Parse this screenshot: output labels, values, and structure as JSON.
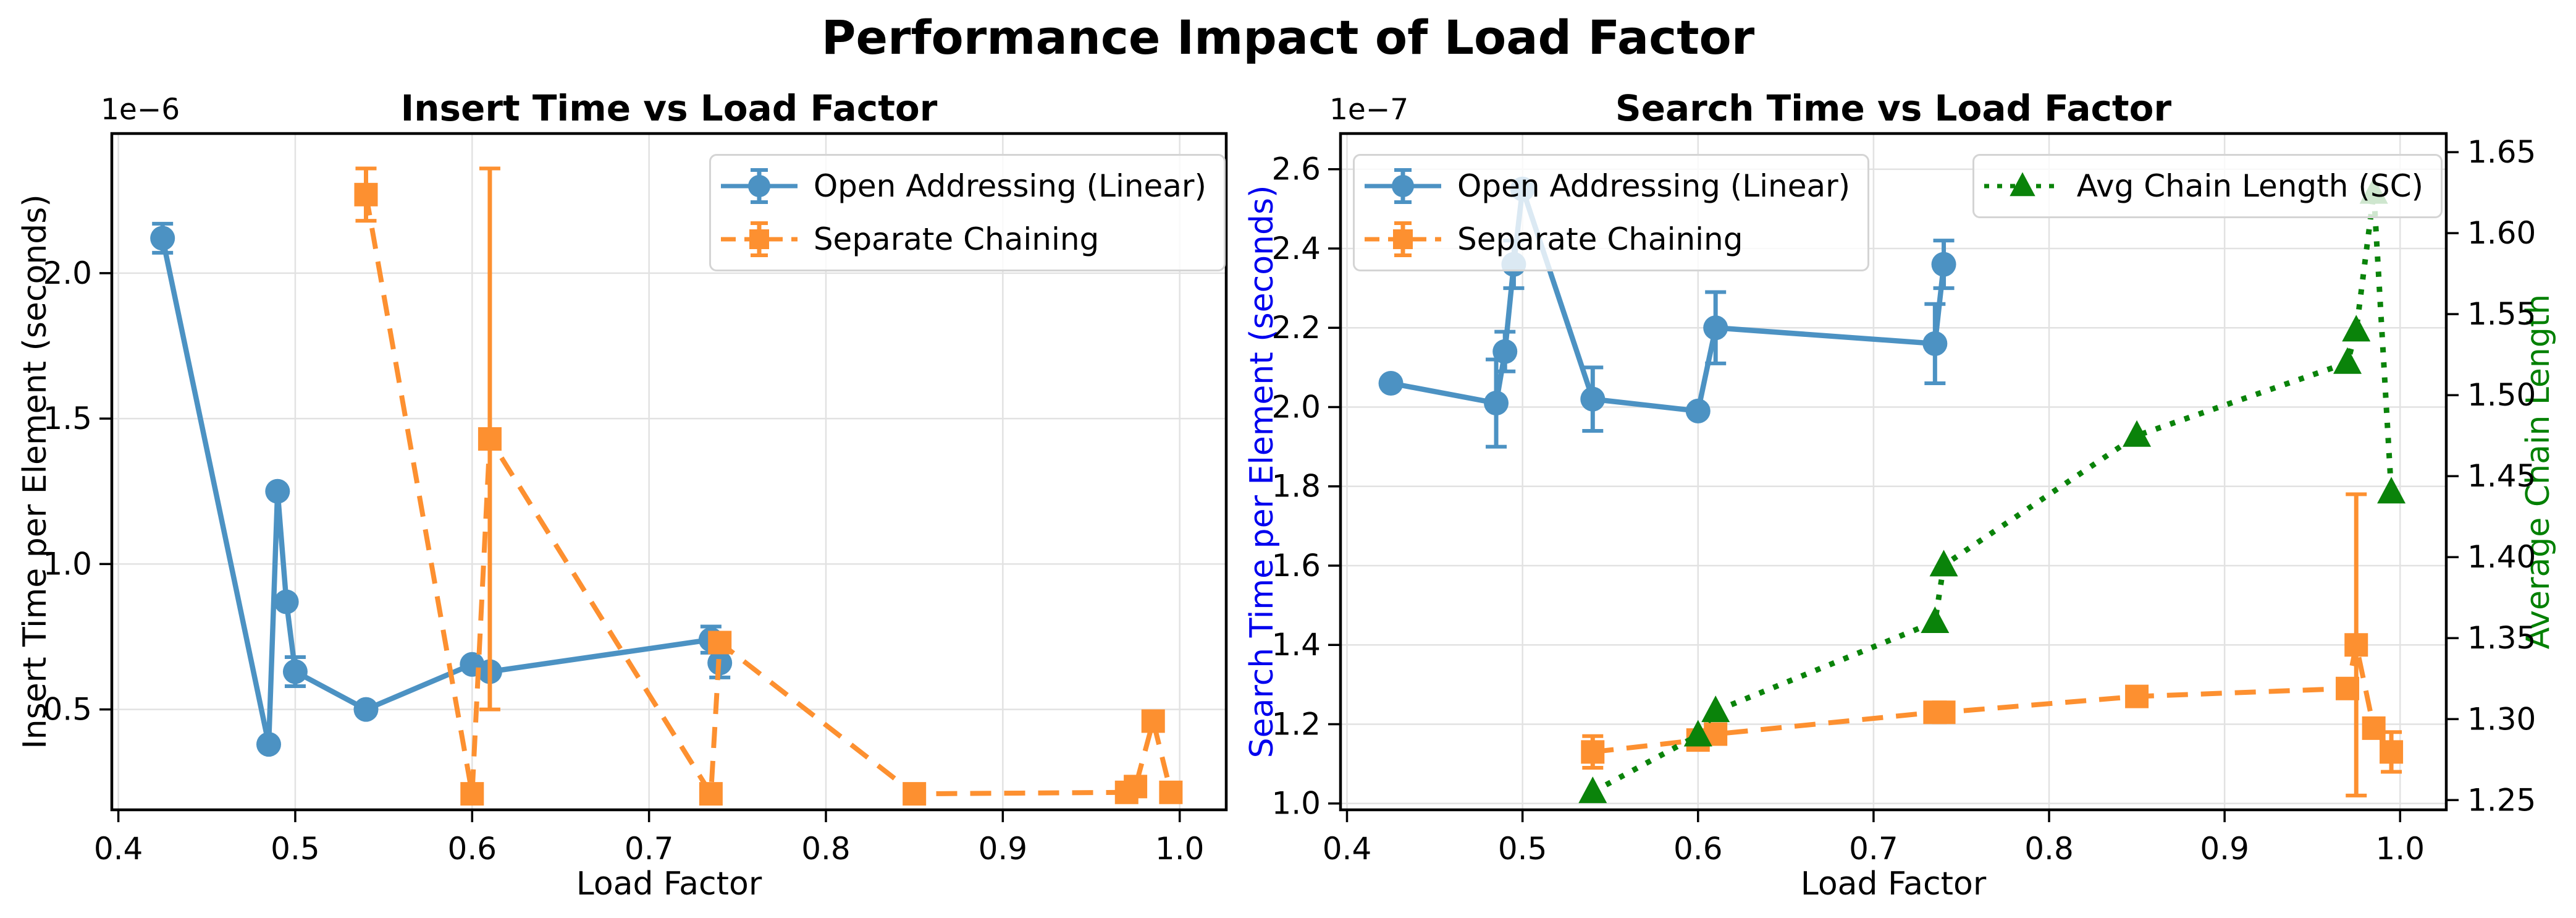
{
  "figure": {
    "suptitle": "Performance Impact of Load Factor"
  },
  "style": {
    "background": "#ffffff",
    "text_color": "#000000",
    "grid_color": "#e2e2e2",
    "spine_color": "#000000",
    "legend_border": "#d4d4d4",
    "legend_background": "rgba(255,255,255,0.8)",
    "search_axis_label_color": "#0000ee",
    "chain_axis_label_color": "#008000"
  },
  "chart_data": [
    {
      "type": "line",
      "title": "Insert Time vs Load Factor",
      "xlabel": "Load Factor",
      "ylabel": "Insert Time per Element (seconds)",
      "ylabel_color": "#000000",
      "offset_text": "1e−6",
      "grid": true,
      "legend_position": "upper right",
      "xlim": [
        0.3963,
        1.0263
      ],
      "ylim": [
        0.155,
        2.48
      ],
      "xticks": [
        0.4,
        0.5,
        0.6,
        0.7,
        0.8,
        0.9,
        1.0
      ],
      "xticklabels": [
        "0.4",
        "0.5",
        "0.6",
        "0.7",
        "0.8",
        "0.9",
        "1.0"
      ],
      "yticks": [
        0.5,
        1.0,
        1.5,
        2.0
      ],
      "yticklabels": [
        "0.5",
        "1.0",
        "1.5",
        "2.0"
      ],
      "series": [
        {
          "name": "Open Addressing (Linear)",
          "color": "#4c92c3",
          "line": "solid",
          "marker": "circle",
          "x": [
            0.425,
            0.485,
            0.49,
            0.495,
            0.5,
            0.54,
            0.6,
            0.61,
            0.735,
            0.74
          ],
          "y": [
            2.12,
            0.38,
            1.25,
            0.87,
            0.63,
            0.5,
            0.655,
            0.63,
            0.74,
            0.66
          ],
          "yerr": [
            0.05,
            0,
            0,
            0,
            0.05,
            0,
            0,
            0,
            0.045,
            0.05
          ]
        },
        {
          "name": "Separate Chaining",
          "color": "#fd9030",
          "line": "dashed",
          "marker": "square",
          "x": [
            0.54,
            0.6,
            0.61,
            0.735,
            0.74,
            0.85,
            0.97,
            0.975,
            0.985,
            0.995
          ],
          "y": [
            2.27,
            0.21,
            1.43,
            0.21,
            0.73,
            0.21,
            0.215,
            0.235,
            0.46,
            0.215
          ],
          "yerr": [
            0.09,
            0,
            0.93,
            0,
            0,
            0,
            0.03,
            0,
            0,
            0.03
          ]
        }
      ]
    },
    {
      "type": "line",
      "title": "Search Time vs Load Factor",
      "xlabel": "Load Factor",
      "ylabel": "Search Time per Element (seconds)",
      "ylabel_color": "#0000ee",
      "offset_text": "1e−7",
      "grid": true,
      "legend_position": "upper left + upper right",
      "xlim": [
        0.3963,
        1.0263
      ],
      "ylim": [
        0.984,
        2.69
      ],
      "xticks": [
        0.4,
        0.5,
        0.6,
        0.7,
        0.8,
        0.9,
        1.0
      ],
      "xticklabels": [
        "0.4",
        "0.5",
        "0.6",
        "0.7",
        "0.8",
        "0.9",
        "1.0"
      ],
      "yticks": [
        1.0,
        1.2,
        1.4,
        1.6,
        1.8,
        2.0,
        2.2,
        2.4,
        2.6
      ],
      "yticklabels": [
        "1.0",
        "1.2",
        "1.4",
        "1.6",
        "1.8",
        "2.0",
        "2.2",
        "2.4",
        "2.6"
      ],
      "right_axis": {
        "label": "Average Chain Length",
        "color": "#008000",
        "ylim": [
          1.244,
          1.6615
        ],
        "yticks": [
          1.25,
          1.3,
          1.35,
          1.4,
          1.45,
          1.5,
          1.55,
          1.6,
          1.65
        ],
        "yticklabels": [
          "1.25",
          "1.30",
          "1.35",
          "1.40",
          "1.45",
          "1.50",
          "1.55",
          "1.60",
          "1.65"
        ]
      },
      "series": [
        {
          "name": "Open Addressing (Linear)",
          "color": "#4c92c3",
          "line": "solid",
          "marker": "circle",
          "x": [
            0.425,
            0.485,
            0.49,
            0.495,
            0.5,
            0.54,
            0.6,
            0.61,
            0.735,
            0.74
          ],
          "y": [
            2.06,
            2.01,
            2.14,
            2.36,
            2.55,
            2.02,
            1.99,
            2.2,
            2.16,
            2.36
          ],
          "yerr": [
            0,
            0.11,
            0.05,
            0.06,
            0,
            0.08,
            0,
            0.09,
            0.1,
            0.06
          ]
        },
        {
          "name": "Separate Chaining",
          "color": "#fd9030",
          "line": "dashed",
          "marker": "square",
          "x": [
            0.54,
            0.6,
            0.61,
            0.735,
            0.74,
            0.85,
            0.97,
            0.975,
            0.985,
            0.995
          ],
          "y": [
            1.13,
            1.16,
            1.175,
            1.23,
            1.23,
            1.27,
            1.29,
            1.4,
            1.19,
            1.13
          ],
          "yerr": [
            0.04,
            0,
            0,
            0.02,
            0,
            0,
            0,
            0.38,
            0,
            0.05
          ]
        },
        {
          "name": "Avg Chain Length (SC)",
          "color": "#0a830a",
          "line": "dotted",
          "marker": "triangle",
          "axis": "right",
          "x": [
            0.54,
            0.6,
            0.61,
            0.735,
            0.74,
            0.85,
            0.97,
            0.975,
            0.985,
            0.995
          ],
          "y": [
            1.255,
            1.29,
            1.305,
            1.36,
            1.395,
            1.475,
            1.52,
            1.54,
            1.625,
            1.44
          ]
        }
      ]
    }
  ]
}
